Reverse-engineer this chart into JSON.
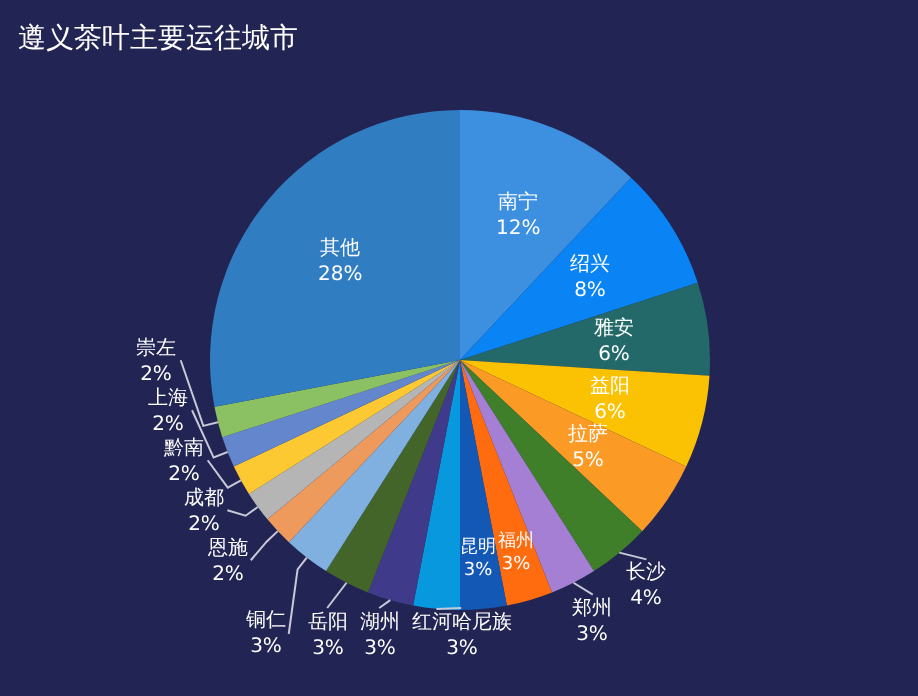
{
  "chart_data": {
    "type": "pie",
    "title": "遵义茶叶主要运往城市",
    "categories": [
      "南宁",
      "绍兴",
      "雅安",
      "益阳",
      "拉萨",
      "长沙",
      "郑州",
      "福州",
      "昆明",
      "红河哈尼族",
      "湖州",
      "岳阳",
      "铜仁",
      "恩施",
      "成都",
      "黔南",
      "上海",
      "崇左",
      "其他"
    ],
    "values": [
      12,
      8,
      6,
      6,
      5,
      4,
      3,
      3,
      3,
      3,
      3,
      3,
      3,
      2,
      2,
      2,
      2,
      2,
      28
    ],
    "value_labels": [
      "12%",
      "8%",
      "6%",
      "6%",
      "5%",
      "4%",
      "3%",
      "3%",
      "3%",
      "3%",
      "3%",
      "3%",
      "3%",
      "2%",
      "2%",
      "2%",
      "2%",
      "2%",
      "28%"
    ],
    "colors": [
      "#3d8fe0",
      "#0a84f5",
      "#23696a",
      "#fbc203",
      "#fc9a26",
      "#3f7f2a",
      "#a57fd3",
      "#fe6c0f",
      "#1458b5",
      "#0798dd",
      "#3f3b8a",
      "#43652a",
      "#7fb0e0",
      "#ee9a5c",
      "#b5b5b5",
      "#fdc932",
      "#6486cc",
      "#8bc063",
      "#317dc2"
    ],
    "legend": false
  }
}
